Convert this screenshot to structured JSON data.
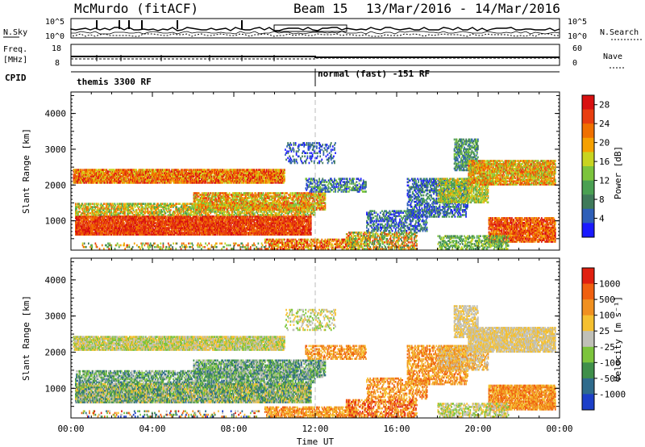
{
  "header": {
    "station": "McMurdo (fitACF)",
    "beam": "Beam 15",
    "date_range": "13/Mar/2016 - 14/Mar/2016"
  },
  "summary_panels": {
    "left_top_label": "N.Sky",
    "left_top_ticks": [
      "10^5",
      "10^0"
    ],
    "right_top_label": "N.Search",
    "right_top_ticks": [
      "10^5",
      "10^0"
    ],
    "freq_label": [
      "Freq.",
      "[MHz]"
    ],
    "freq_ticks": [
      "18",
      "8"
    ],
    "nave_label": "Nave",
    "nave_ticks": [
      "60",
      "0"
    ],
    "cpid_label": "CPID",
    "cpid_segments": [
      {
        "label": "themis 3300 RF",
        "start_hour": 0
      },
      {
        "label": "normal (fast) -151 RF",
        "start_hour": 12
      }
    ]
  },
  "chart_data": [
    {
      "type": "heatmap",
      "title": "",
      "xlabel": "Time UT",
      "ylabel": "Slant Range [km]",
      "x_range_hours": [
        0,
        24
      ],
      "x_ticks": [
        "00:00",
        "04:00",
        "08:00",
        "12:00",
        "16:00",
        "20:00",
        "00:00"
      ],
      "ylim": [
        180,
        4600
      ],
      "y_ticks": [
        1000,
        2000,
        3000,
        4000
      ],
      "colorbar": {
        "label": "Power [dB]",
        "ticks": [
          "4",
          "8",
          "12",
          "16",
          "20",
          "24",
          "28"
        ],
        "colors": [
          "#1a1aff",
          "#2e5fb8",
          "#3f7a5a",
          "#4aa052",
          "#7cc43c",
          "#c8d420",
          "#f5a000",
          "#f07000",
          "#e83e10",
          "#d81010"
        ]
      }
    },
    {
      "type": "heatmap",
      "title": "",
      "xlabel": "Time UT",
      "ylabel": "Slant Range [km]",
      "x_range_hours": [
        0,
        24
      ],
      "x_ticks": [
        "00:00",
        "04:00",
        "08:00",
        "12:00",
        "16:00",
        "20:00",
        "00:00"
      ],
      "ylim": [
        180,
        4600
      ],
      "y_ticks": [
        1000,
        2000,
        3000,
        4000
      ],
      "colorbar": {
        "label": "Velocity [m s⁻¹]",
        "ticks": [
          "1000",
          "500",
          "100",
          "25",
          "-25",
          "-100",
          "-500",
          "-1000"
        ],
        "colors": [
          "#1c3fc8",
          "#2f6b8c",
          "#3f8f4a",
          "#7cc43c",
          "#c0c0b8",
          "#f5c030",
          "#f09020",
          "#f06010",
          "#e02010"
        ]
      }
    }
  ]
}
